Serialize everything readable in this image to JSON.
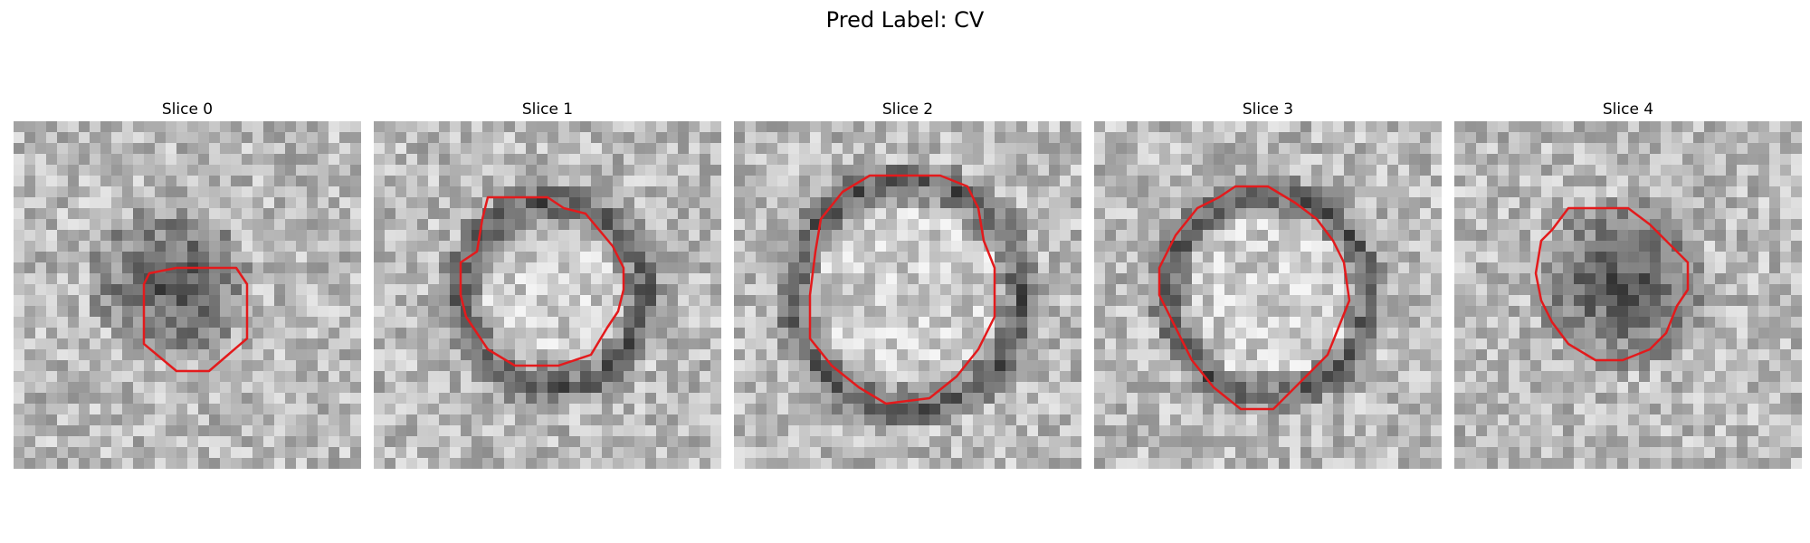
{
  "figure": {
    "title": "Pred Label: CV",
    "contour_color": "#e31a1c",
    "panels": [
      {
        "label": "Slice 0",
        "seed": 11,
        "pattern": "blob-small"
      },
      {
        "label": "Slice 1",
        "seed": 23,
        "pattern": "ring"
      },
      {
        "label": "Slice 2",
        "seed": 37,
        "pattern": "ring-large"
      },
      {
        "label": "Slice 3",
        "seed": 41,
        "pattern": "ring"
      },
      {
        "label": "Slice 4",
        "seed": 53,
        "pattern": "blob"
      }
    ]
  }
}
